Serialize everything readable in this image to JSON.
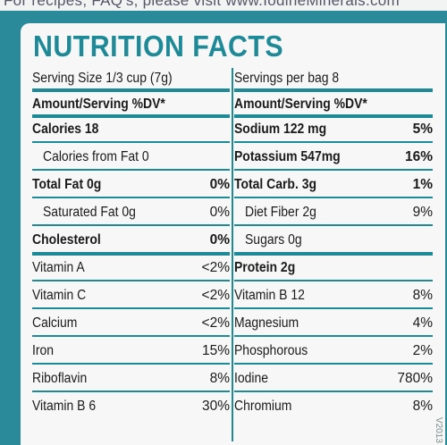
{
  "top_text": "For recipes, FAQ's, please visit www.IodineMinerals.com",
  "title": "NUTRITION FACTS",
  "left": {
    "serving_size": "Serving Size 1/3 cup (7g)",
    "amount_header": "Amount/Serving %DV*",
    "rows": [
      {
        "label": "Calories 18",
        "value": "",
        "bold": true,
        "indent": false
      },
      {
        "label": "Calories from Fat 0",
        "value": "",
        "bold": false,
        "indent": true
      },
      {
        "label": "Total Fat 0g",
        "value": "0%",
        "bold": true,
        "indent": false
      },
      {
        "label": "Saturated Fat 0g",
        "value": "0%",
        "bold": false,
        "indent": true
      },
      {
        "label": "Cholesterol",
        "value": "0%",
        "bold": true,
        "indent": false
      },
      {
        "label": "Vitamin A",
        "value": "<2%",
        "bold": false,
        "indent": false
      },
      {
        "label": "Vitamin C",
        "value": "<2%",
        "bold": false,
        "indent": false
      },
      {
        "label": "Calcium",
        "value": "<2%",
        "bold": false,
        "indent": false
      },
      {
        "label": "Iron",
        "value": "15%",
        "bold": false,
        "indent": false
      },
      {
        "label": "Riboflavin",
        "value": "8%",
        "bold": false,
        "indent": false
      },
      {
        "label": "Vitamin B 6",
        "value": "30%",
        "bold": false,
        "indent": false
      }
    ]
  },
  "right": {
    "servings": "Servings per bag 8",
    "amount_header": "Amount/Serving %DV*",
    "rows": [
      {
        "label": "Sodium 122 mg",
        "value": "5%",
        "bold": true,
        "indent": false
      },
      {
        "label": "Potassium 547mg",
        "value": "16%",
        "bold": true,
        "indent": false
      },
      {
        "label": "Total Carb. 3g",
        "value": "1%",
        "bold": true,
        "indent": false
      },
      {
        "label": "Diet Fiber 2g",
        "value": "9%",
        "bold": false,
        "indent": true
      },
      {
        "label": "Sugars 0g",
        "value": "",
        "bold": false,
        "indent": true
      },
      {
        "label": "Protein 2g",
        "value": "",
        "bold": true,
        "indent": false
      },
      {
        "label": "Vitamin B 12",
        "value": "8%",
        "bold": false,
        "indent": false
      },
      {
        "label": "Magnesium",
        "value": "4%",
        "bold": false,
        "indent": false
      },
      {
        "label": "Phosphorous",
        "value": "2%",
        "bold": false,
        "indent": false
      },
      {
        "label": "Iodine",
        "value": "780%",
        "bold": false,
        "indent": false
      },
      {
        "label": "Chromium",
        "value": "8%",
        "bold": false,
        "indent": false
      }
    ]
  },
  "edge_mark": "V2013"
}
